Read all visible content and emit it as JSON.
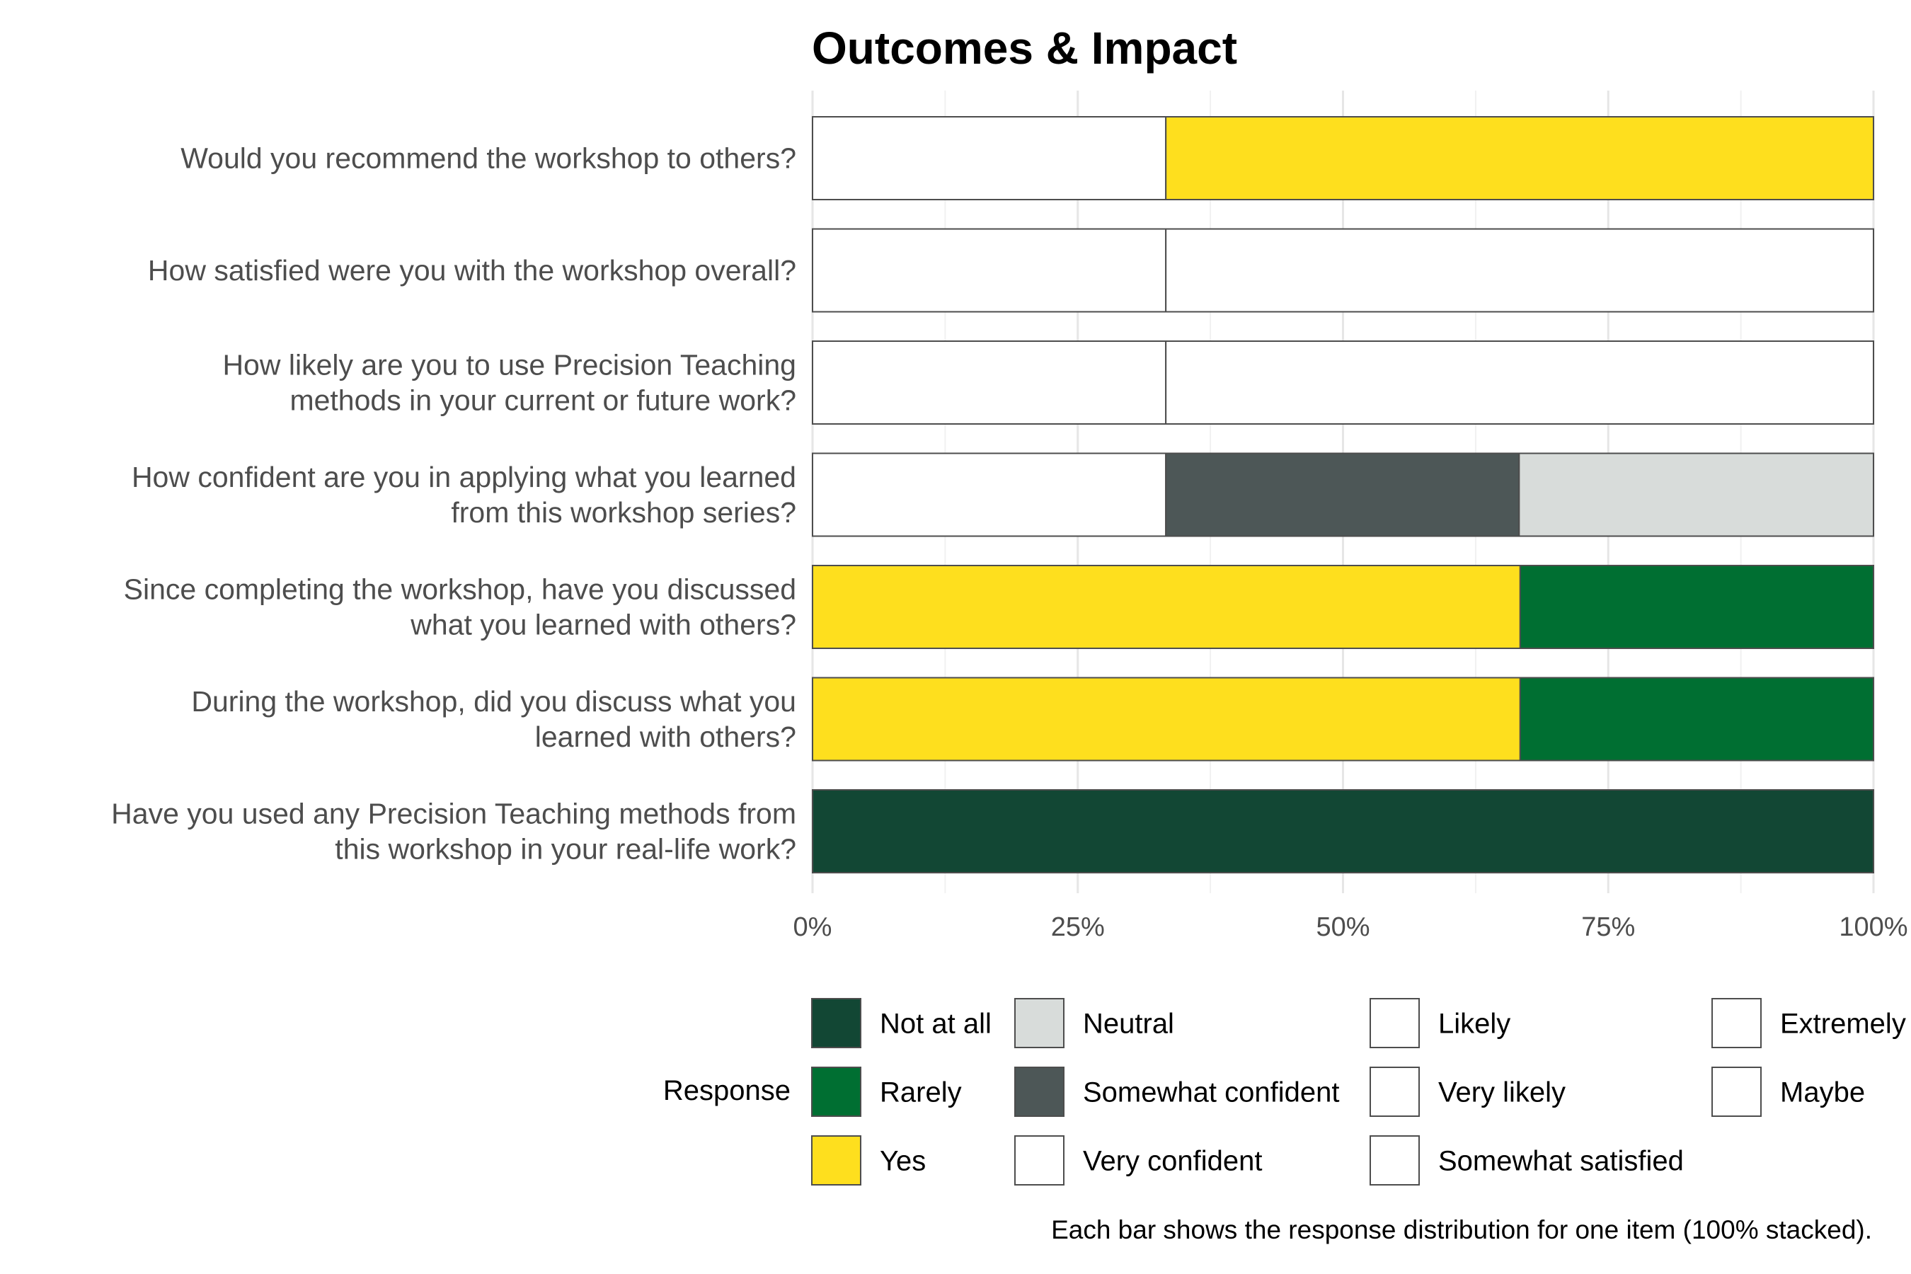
{
  "chart_data": {
    "type": "bar",
    "orientation": "horizontal",
    "stacked": "100%",
    "title": "Outcomes & Impact",
    "xlabel": "",
    "ylabel": "",
    "xlim": [
      0,
      100
    ],
    "x_ticks": [
      "0%",
      "25%",
      "50%",
      "75%",
      "100%"
    ],
    "x_tick_values": [
      0,
      25,
      50,
      75,
      100
    ],
    "grid": true,
    "legend_title": "Response",
    "legend_position": "bottom",
    "caption": "Each bar shows the response distribution for one item (100% stacked).",
    "legend": [
      {
        "label": "Not at all",
        "color": "#124734"
      },
      {
        "label": "Rarely",
        "color": "#006F32"
      },
      {
        "label": "Yes",
        "color": "#FEDF1E"
      },
      {
        "label": "Neutral",
        "color": "#D8DCDA"
      },
      {
        "label": "Somewhat confident",
        "color": "#4D5757"
      },
      {
        "label": "Very confident",
        "color": "#FFFFFF"
      },
      {
        "label": "Likely",
        "color": "#FFFFFF"
      },
      {
        "label": "Very likely",
        "color": "#FFFFFF"
      },
      {
        "label": "Somewhat satisfied",
        "color": "#FFFFFF"
      },
      {
        "label": "Extremely",
        "color": "#FFFFFF"
      },
      {
        "label": "Maybe",
        "color": "#FFFFFF"
      }
    ],
    "categories": [
      "Would you recommend the workshop to others?",
      "How satisfied were you with the workshop overall?",
      "How likely are you to use Precision Teaching methods in your current or future work?",
      "How confident are you in applying what you learned from this workshop series?",
      "Since completing the workshop, have you discussed what you learned with others?",
      "During the workshop, did you discuss what you learned with others?",
      "Have you used any Precision Teaching methods from this workshop in your real-life work?"
    ],
    "category_lines": [
      [
        "Would you recommend the workshop to others?"
      ],
      [
        "How satisfied were you with the workshop overall?"
      ],
      [
        "How likely are you to use Precision Teaching",
        "methods in your current or future work?"
      ],
      [
        "How confident are you in applying what you learned",
        "from this workshop series?"
      ],
      [
        "Since completing the workshop, have you discussed",
        "what you learned with others?"
      ],
      [
        "During the workshop, did you discuss what you",
        "learned with others?"
      ],
      [
        "Have you used any Precision Teaching methods from",
        "this workshop in your real-life work?"
      ]
    ],
    "bars": [
      {
        "segments": [
          {
            "response": "Maybe",
            "value": 33.3,
            "color": "#FFFFFF"
          },
          {
            "response": "Yes",
            "value": 66.7,
            "color": "#FEDF1E"
          }
        ]
      },
      {
        "segments": [
          {
            "response": "Somewhat satisfied",
            "value": 33.3,
            "color": "#FFFFFF"
          },
          {
            "response": "Extremely",
            "value": 66.7,
            "color": "#FFFFFF"
          }
        ]
      },
      {
        "segments": [
          {
            "response": "Likely",
            "value": 33.3,
            "color": "#FFFFFF"
          },
          {
            "response": "Very likely",
            "value": 66.7,
            "color": "#FFFFFF"
          }
        ]
      },
      {
        "segments": [
          {
            "response": "Very confident",
            "value": 33.3,
            "color": "#FFFFFF"
          },
          {
            "response": "Somewhat confident",
            "value": 33.3,
            "color": "#4D5757"
          },
          {
            "response": "Neutral",
            "value": 33.4,
            "color": "#D8DCDA"
          }
        ]
      },
      {
        "segments": [
          {
            "response": "Yes",
            "value": 66.7,
            "color": "#FEDF1E"
          },
          {
            "response": "Rarely",
            "value": 33.3,
            "color": "#006F32"
          }
        ]
      },
      {
        "segments": [
          {
            "response": "Yes",
            "value": 66.7,
            "color": "#FEDF1E"
          },
          {
            "response": "Rarely",
            "value": 33.3,
            "color": "#006F32"
          }
        ]
      },
      {
        "segments": [
          {
            "response": "Not at all",
            "value": 100,
            "color": "#124734"
          }
        ]
      }
    ]
  }
}
